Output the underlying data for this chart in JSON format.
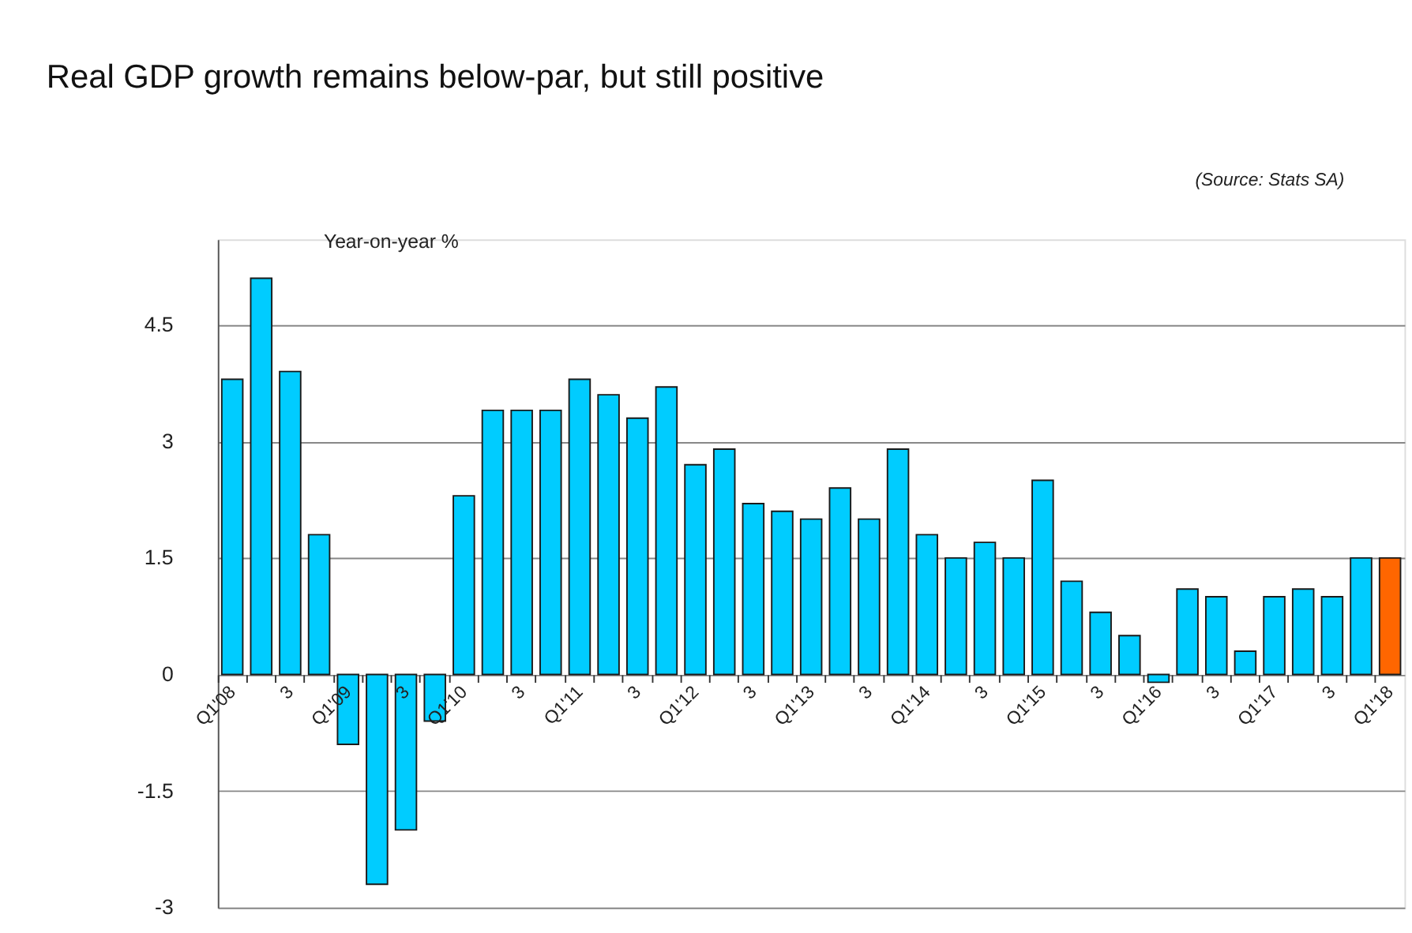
{
  "chart_data": {
    "type": "bar",
    "title": "Real GDP growth remains below-par, but still positive",
    "ylabel": "Year-on-year %",
    "annotations": [
      "(Source: Stats SA)"
    ],
    "categories": [
      "Q1'08",
      null,
      "3",
      null,
      "Q1'09",
      null,
      "3",
      null,
      "Q1'10",
      null,
      "3",
      null,
      "Q1'11",
      null,
      "3",
      null,
      "Q1'12",
      null,
      "3",
      null,
      "Q1'13",
      null,
      "3",
      null,
      "Q1'14",
      null,
      "3",
      null,
      "Q1'15",
      null,
      "3",
      null,
      "Q1'16",
      null,
      "3",
      null,
      "Q1'17",
      null,
      "3",
      null,
      "Q1'18"
    ],
    "values": [
      3.8,
      5.1,
      3.9,
      1.8,
      -0.9,
      -2.7,
      -2.0,
      -0.6,
      2.3,
      3.4,
      3.4,
      3.4,
      3.8,
      3.6,
      3.3,
      3.7,
      2.7,
      2.9,
      2.2,
      2.1,
      2.0,
      2.4,
      2.0,
      2.9,
      1.8,
      1.5,
      1.7,
      1.5,
      2.5,
      1.2,
      0.8,
      0.5,
      -0.1,
      1.1,
      1.0,
      0.3,
      1.0,
      1.1,
      1.0,
      1.5,
      1.5
    ],
    "colors": [
      "#00ccff",
      "#00ccff",
      "#00ccff",
      "#00ccff",
      "#00ccff",
      "#00ccff",
      "#00ccff",
      "#00ccff",
      "#00ccff",
      "#00ccff",
      "#00ccff",
      "#00ccff",
      "#00ccff",
      "#00ccff",
      "#00ccff",
      "#00ccff",
      "#00ccff",
      "#00ccff",
      "#00ccff",
      "#00ccff",
      "#00ccff",
      "#00ccff",
      "#00ccff",
      "#00ccff",
      "#00ccff",
      "#00ccff",
      "#00ccff",
      "#00ccff",
      "#00ccff",
      "#00ccff",
      "#00ccff",
      "#00ccff",
      "#00ccff",
      "#00ccff",
      "#00ccff",
      "#00ccff",
      "#00ccff",
      "#00ccff",
      "#00ccff",
      "#00ccff",
      "#ff6600"
    ],
    "ylim": [
      -3,
      5.6
    ],
    "yticks": [
      -3,
      -1.5,
      0,
      1.5,
      3,
      4.5
    ],
    "grid": "y"
  }
}
